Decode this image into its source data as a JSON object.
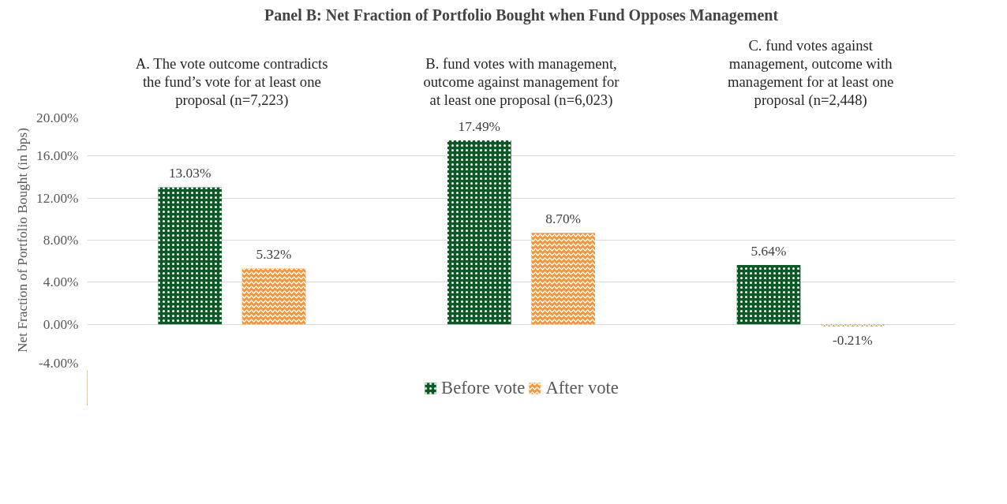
{
  "chart_data": {
    "type": "bar",
    "title": "Panel B: Net Fraction of Portfolio Bought when Fund Opposes Management",
    "ylabel": "Net Fraction of Portfolio Bought (in bps)",
    "categories": [
      "A. The vote outcome contradicts the fund’s vote for at least one proposal (n=7,223)",
      "B. fund votes with management, outcome against management for at least one proposal (n=6,023)",
      "C. fund votes against management, outcome with management for at least one proposal (n=2,448)"
    ],
    "series": [
      {
        "name": "Before vote",
        "color": "#0b5a26",
        "values": [
          13.03,
          17.49,
          5.64
        ],
        "value_labels": [
          "13.03%",
          "17.49%",
          "5.64%"
        ]
      },
      {
        "name": "After vote",
        "color": "#f5963a",
        "values": [
          5.32,
          8.7,
          -0.21
        ],
        "value_labels": [
          "5.32%",
          "8.70%",
          "-0.21%"
        ]
      }
    ],
    "ylim": [
      -4,
      20
    ],
    "yticks": [
      {
        "value": -4,
        "label": "-4.00%"
      },
      {
        "value": 0,
        "label": "0.00%"
      },
      {
        "value": 4,
        "label": "4.00%"
      },
      {
        "value": 8,
        "label": "8.00%"
      },
      {
        "value": 12,
        "label": "12.00%"
      },
      {
        "value": 16,
        "label": "16.00%"
      },
      {
        "value": 20,
        "label": "20.00%"
      }
    ],
    "grid": "y",
    "legend": "bottom"
  }
}
